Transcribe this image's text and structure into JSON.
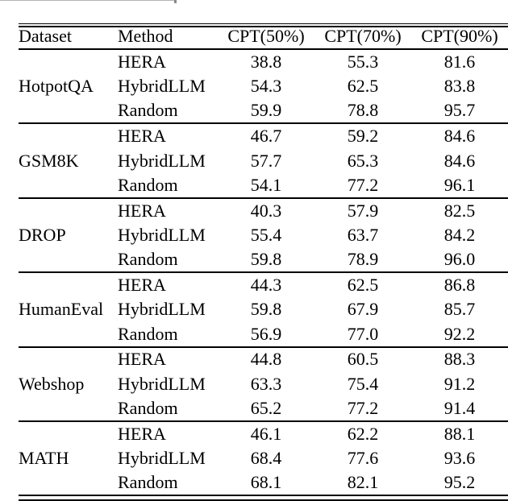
{
  "page": {
    "background": "#ffffff",
    "text_color": "#000000",
    "rule_color": "#000000"
  },
  "table": {
    "columns": [
      "Dataset",
      "Method",
      "CPT(50%)",
      "CPT(70%)",
      "CPT(90%)"
    ],
    "groups": [
      {
        "dataset": "HotpotQA",
        "rows": [
          [
            "HERA",
            "38.8",
            "55.3",
            "81.6"
          ],
          [
            "HybridLLM",
            "54.3",
            "62.5",
            "83.8"
          ],
          [
            "Random",
            "59.9",
            "78.8",
            "95.7"
          ]
        ]
      },
      {
        "dataset": "GSM8K",
        "rows": [
          [
            "HERA",
            "46.7",
            "59.2",
            "84.6"
          ],
          [
            "HybridLLM",
            "57.7",
            "65.3",
            "84.6"
          ],
          [
            "Random",
            "54.1",
            "77.2",
            "96.1"
          ]
        ]
      },
      {
        "dataset": "DROP",
        "rows": [
          [
            "HERA",
            "40.3",
            "57.9",
            "82.5"
          ],
          [
            "HybridLLM",
            "55.4",
            "63.7",
            "84.2"
          ],
          [
            "Random",
            "59.8",
            "78.9",
            "96.0"
          ]
        ]
      },
      {
        "dataset": "HumanEval",
        "rows": [
          [
            "HERA",
            "44.3",
            "62.5",
            "86.8"
          ],
          [
            "HybridLLM",
            "59.8",
            "67.9",
            "85.7"
          ],
          [
            "Random",
            "56.9",
            "77.0",
            "92.2"
          ]
        ]
      },
      {
        "dataset": "Webshop",
        "rows": [
          [
            "HERA",
            "44.8",
            "60.5",
            "88.3"
          ],
          [
            "HybridLLM",
            "63.3",
            "75.4",
            "91.2"
          ],
          [
            "Random",
            "65.2",
            "77.2",
            "91.4"
          ]
        ]
      },
      {
        "dataset": "MATH",
        "rows": [
          [
            "HERA",
            "46.1",
            "62.2",
            "88.1"
          ],
          [
            "HybridLLM",
            "68.4",
            "77.6",
            "93.6"
          ],
          [
            "Random",
            "68.1",
            "82.1",
            "95.2"
          ]
        ]
      }
    ]
  }
}
